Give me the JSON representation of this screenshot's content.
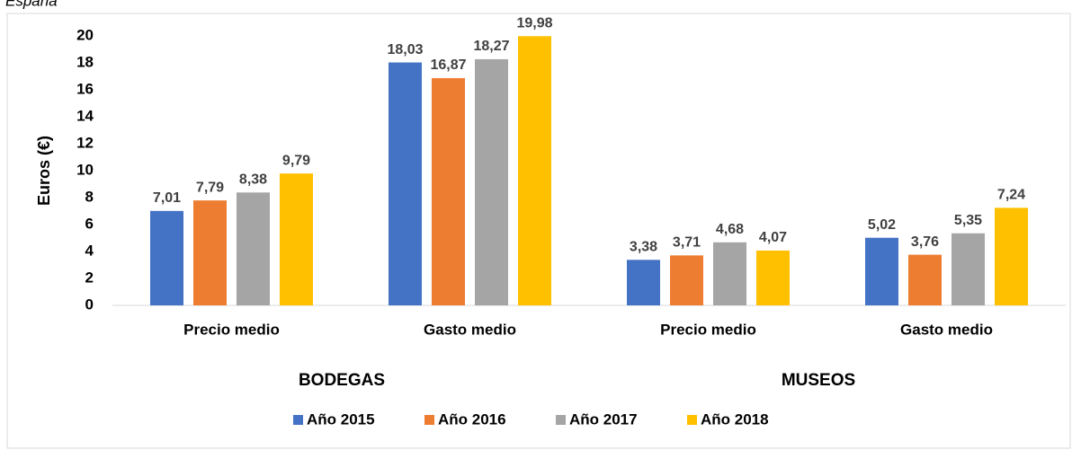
{
  "chart_data": {
    "type": "bar",
    "title": "España",
    "y_label": "Euros (€)",
    "categories": [
      "Precio medio",
      "Gasto medio",
      "Precio medio",
      "Gasto medio"
    ],
    "category_groups": [
      "BODEGAS",
      "MUSEOS"
    ],
    "series": [
      {
        "name": "Año 2015",
        "color": "#4472c4",
        "values": [
          7.01,
          18.03,
          3.38,
          5.02
        ],
        "value_labels": [
          "7,01",
          "18,03",
          "3,38",
          "5,02"
        ]
      },
      {
        "name": "Año 2016",
        "color": "#ed7d31",
        "values": [
          7.79,
          16.87,
          3.71,
          3.76
        ],
        "value_labels": [
          "7,79",
          "16,87",
          "3,71",
          "3,76"
        ]
      },
      {
        "name": "Año 2017",
        "color": "#a5a5a5",
        "values": [
          8.38,
          18.27,
          4.68,
          5.35
        ],
        "value_labels": [
          "8,38",
          "18,27",
          "4,68",
          "5,35"
        ]
      },
      {
        "name": "Año 2018",
        "color": "#ffc000",
        "values": [
          9.79,
          19.98,
          4.07,
          7.24
        ],
        "value_labels": [
          "9,79",
          "19,98",
          "4,07",
          "7,24"
        ]
      }
    ],
    "ylim": [
      0,
      20
    ],
    "yticks": [
      0,
      2,
      4,
      6,
      8,
      10,
      12,
      14,
      16,
      18,
      20
    ],
    "grid": false,
    "legend": "bottom"
  }
}
